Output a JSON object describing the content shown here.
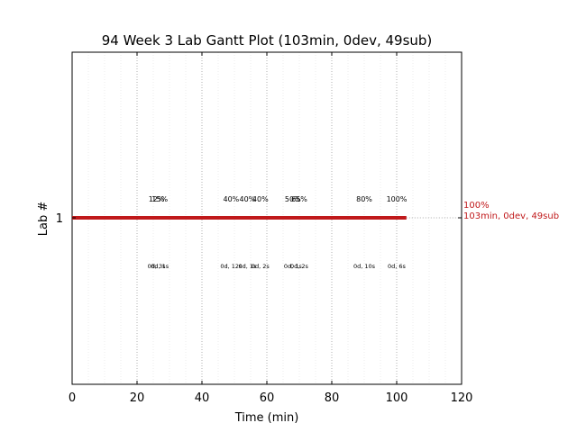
{
  "chart_data": {
    "type": "gantt",
    "title": "94 Week 3 Lab Gantt Plot (103min, 0dev, 49sub)",
    "xlabel": "Time (min)",
    "ylabel": "Lab #",
    "xlim": [
      0,
      120
    ],
    "xticks": [
      "0",
      "20",
      "40",
      "60",
      "80",
      "100",
      "120"
    ],
    "yticks": [
      "1"
    ],
    "grid": true,
    "bar": {
      "lab": 1,
      "start": 0,
      "end": 103,
      "color": "#c0191b"
    },
    "end_label": {
      "line1": "100%",
      "line2": "103min, 0dev, 49sub"
    },
    "milestones": [
      {
        "x": 26,
        "percent": "12%",
        "detail": "0d, 3s"
      },
      {
        "x": 27,
        "percent": "15%",
        "detail": "0d, 1s"
      },
      {
        "x": 49,
        "percent": "40%",
        "detail": "0d, 12s"
      },
      {
        "x": 54,
        "percent": "40%",
        "detail": "0d, 1s"
      },
      {
        "x": 58,
        "percent": "40%",
        "detail": "0d, 2s"
      },
      {
        "x": 68,
        "percent": "50%",
        "detail": "0d, 1s"
      },
      {
        "x": 70,
        "percent": "65%",
        "detail": "0d, 2s"
      },
      {
        "x": 90,
        "percent": "80%",
        "detail": "0d, 10s"
      },
      {
        "x": 100,
        "percent": "100%",
        "detail": "0d, 6s"
      }
    ]
  }
}
